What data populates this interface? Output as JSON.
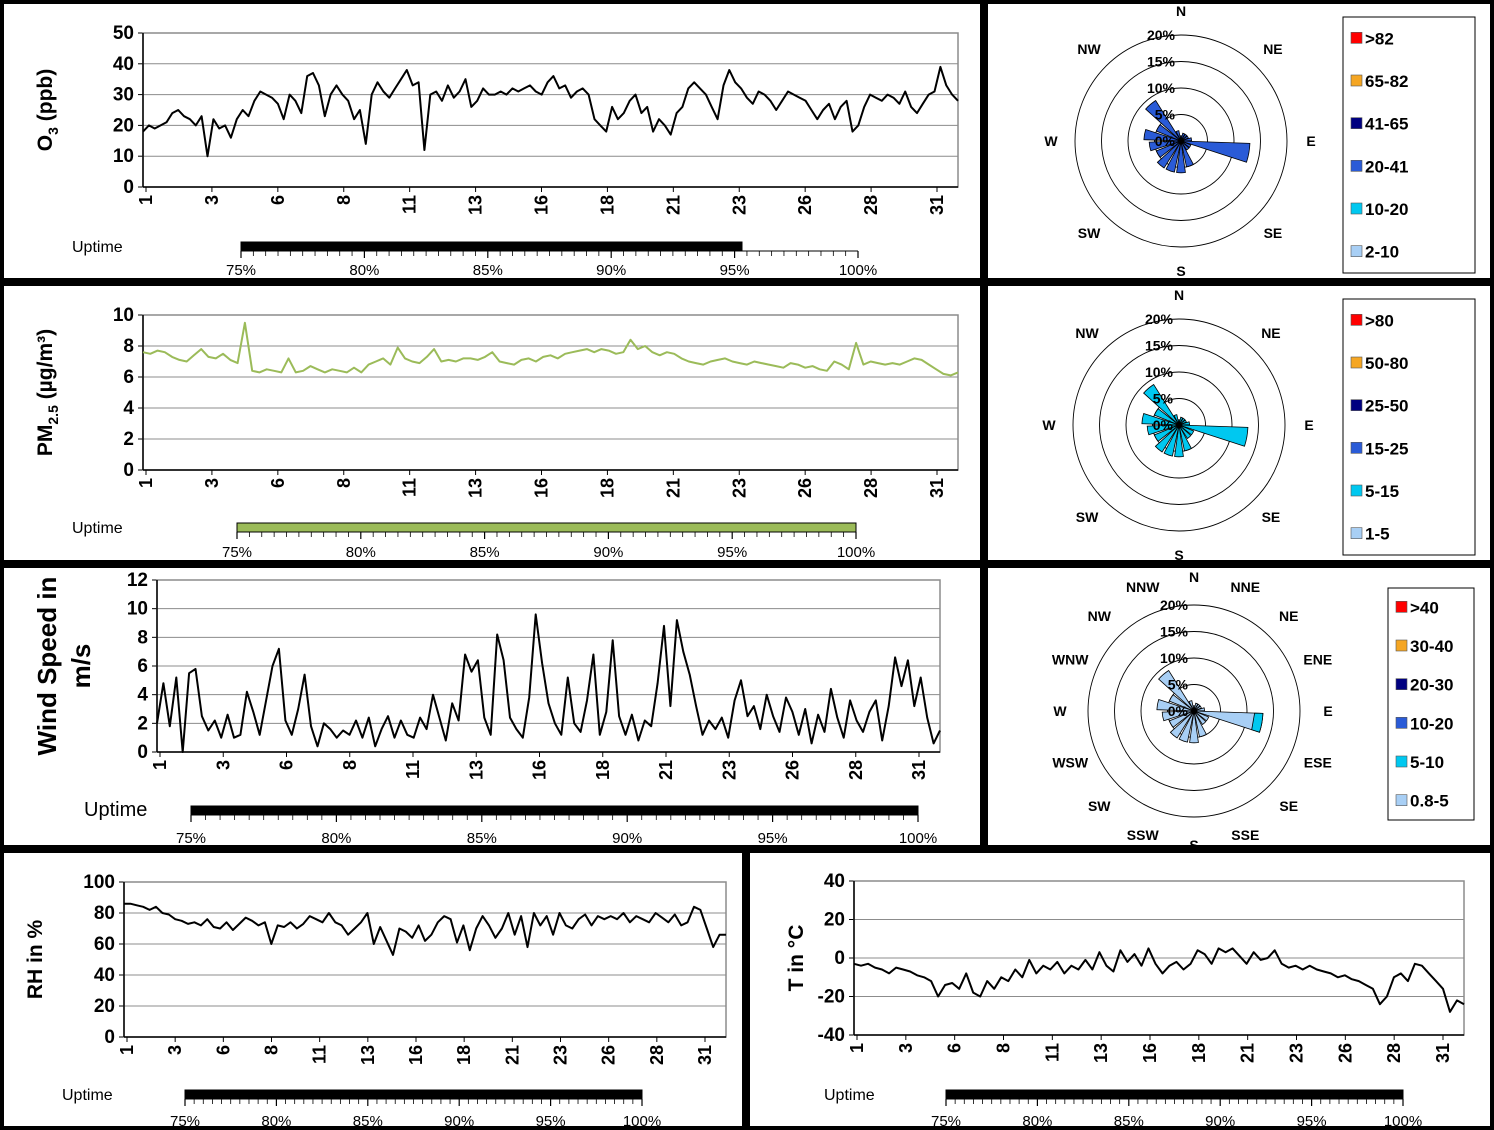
{
  "chart_data": [
    {
      "type": "line",
      "id": "o3",
      "ylabel_main": "O",
      "ylabel_sub": "3",
      "ylabel_rest": " (ppb)",
      "ylim": [
        0,
        50
      ],
      "yticks": [
        0,
        10,
        20,
        30,
        40,
        50
      ],
      "xticks": [
        "1",
        "3",
        "6",
        "8",
        "11",
        "13",
        "16",
        "18",
        "21",
        "23",
        "26",
        "28",
        "31"
      ],
      "grid": true,
      "series": [
        {
          "color": "#000000",
          "values": [
            18,
            20,
            19,
            20,
            21,
            24,
            25,
            23,
            22,
            20,
            23,
            10,
            22,
            19,
            20,
            16,
            22,
            25,
            23,
            28,
            31,
            30,
            29,
            27,
            22,
            30,
            28,
            24,
            36,
            37,
            33,
            23,
            30,
            33,
            30,
            28,
            22,
            25,
            14,
            30,
            34,
            31,
            29,
            32,
            35,
            38,
            33,
            34,
            12,
            30,
            31,
            28,
            33,
            29,
            31,
            35,
            26,
            28,
            32,
            30,
            30,
            31,
            30,
            32,
            31,
            32,
            33,
            31,
            30,
            34,
            36,
            32,
            33,
            29,
            31,
            32,
            30,
            22,
            20,
            18,
            26,
            22,
            24,
            28,
            30,
            24,
            26,
            18,
            22,
            20,
            17,
            24,
            26,
            32,
            34,
            32,
            30,
            26,
            22,
            33,
            38,
            34,
            32,
            29,
            27,
            31,
            30,
            28,
            25,
            28,
            31,
            30,
            29,
            28,
            25,
            22,
            25,
            27,
            22,
            26,
            28,
            18,
            20,
            26,
            30,
            29,
            28,
            30,
            29,
            27,
            31,
            26,
            24,
            27,
            30,
            31,
            39,
            33,
            30,
            28
          ]
        }
      ],
      "uptime": {
        "label": "Uptime",
        "value": 95.3,
        "color": "#000000",
        "ticks": [
          "75%",
          "80%",
          "85%",
          "90%",
          "95%",
          "100%"
        ]
      }
    },
    {
      "type": "line",
      "id": "pm25",
      "ylabel_main": "PM",
      "ylabel_sub": "2.5",
      "ylabel_rest": " (µg/m³)",
      "ylim": [
        0,
        10
      ],
      "yticks": [
        0,
        2,
        4,
        6,
        8,
        10
      ],
      "xticks": [
        "1",
        "3",
        "6",
        "8",
        "11",
        "13",
        "16",
        "18",
        "21",
        "23",
        "26",
        "28",
        "31"
      ],
      "grid": true,
      "series": [
        {
          "color": "#9bbb59",
          "values": [
            7.6,
            7.5,
            7.7,
            7.6,
            7.3,
            7.1,
            7.0,
            7.4,
            7.8,
            7.3,
            7.2,
            7.5,
            7.1,
            6.9,
            9.5,
            6.4,
            6.3,
            6.5,
            6.4,
            6.3,
            7.2,
            6.3,
            6.4,
            6.7,
            6.5,
            6.3,
            6.5,
            6.4,
            6.3,
            6.6,
            6.3,
            6.8,
            7.0,
            7.2,
            6.8,
            7.9,
            7.2,
            7.0,
            6.9,
            7.3,
            7.8,
            7.0,
            7.1,
            7.0,
            7.2,
            7.2,
            7.1,
            7.3,
            7.6,
            7.0,
            6.9,
            6.8,
            7.1,
            7.2,
            7.0,
            7.3,
            7.4,
            7.2,
            7.5,
            7.6,
            7.7,
            7.8,
            7.6,
            7.8,
            7.7,
            7.5,
            7.6,
            8.4,
            7.8,
            8.0,
            7.6,
            7.4,
            7.6,
            7.5,
            7.2,
            7.0,
            6.9,
            6.8,
            7.0,
            7.1,
            7.2,
            7.0,
            6.9,
            6.8,
            7.0,
            6.9,
            6.8,
            6.7,
            6.6,
            6.9,
            6.8,
            6.6,
            6.7,
            6.5,
            6.4,
            7.0,
            6.8,
            6.5,
            8.2,
            6.8,
            7.0,
            6.9,
            6.8,
            6.9,
            6.8,
            7.0,
            7.2,
            7.1,
            6.8,
            6.5,
            6.2,
            6.1,
            6.3
          ]
        }
      ],
      "uptime": {
        "label": "Uptime",
        "value": 100,
        "color": "#9bbb59",
        "ticks": [
          "75%",
          "80%",
          "85%",
          "90%",
          "95%",
          "100%"
        ]
      }
    },
    {
      "type": "line",
      "id": "ws",
      "ylabel_line1": "Wind Speed in",
      "ylabel_line2": "m/s",
      "ylim": [
        0,
        12
      ],
      "yticks": [
        0,
        2,
        4,
        6,
        8,
        10,
        12
      ],
      "xticks": [
        "1",
        "3",
        "6",
        "8",
        "11",
        "13",
        "16",
        "18",
        "21",
        "23",
        "26",
        "28",
        "31"
      ],
      "grid": true,
      "series": [
        {
          "color": "#000000",
          "values": [
            2,
            4.8,
            1.8,
            5.2,
            0,
            5.5,
            5.8,
            2.5,
            1.5,
            2.2,
            1.0,
            2.6,
            1.0,
            1.2,
            4.2,
            2.8,
            1.2,
            3.6,
            6.0,
            7.2,
            2.2,
            1.2,
            3.0,
            5.4,
            1.8,
            0.4,
            2.0,
            1.6,
            1.0,
            1.5,
            1.2,
            2.2,
            1.0,
            2.4,
            0.4,
            1.6,
            2.5,
            1.0,
            2.2,
            1.2,
            1.0,
            2.4,
            1.6,
            4.0,
            2.4,
            0.8,
            3.4,
            2.2,
            6.8,
            5.6,
            6.4,
            2.4,
            1.2,
            8.2,
            6.4,
            2.4,
            1.6,
            1.0,
            3.8,
            9.6,
            6.2,
            3.4,
            2.0,
            1.2,
            5.2,
            2.0,
            1.4,
            3.6,
            6.8,
            1.2,
            2.8,
            7.8,
            2.5,
            1.2,
            2.6,
            0.8,
            2.2,
            1.8,
            4.8,
            8.8,
            3.2,
            9.2,
            7.0,
            5.4,
            3.2,
            1.2,
            2.2,
            1.6,
            2.4,
            1.0,
            3.6,
            5.0,
            2.5,
            3.2,
            1.6,
            4.0,
            2.5,
            1.4,
            3.8,
            2.8,
            1.2,
            3.0,
            0.6,
            2.6,
            1.4,
            4.4,
            2.4,
            1.0,
            3.6,
            2.2,
            1.4,
            2.8,
            3.6,
            0.8,
            3.2,
            6.6,
            4.6,
            6.4,
            3.2,
            5.2,
            2.4,
            0.6,
            1.5
          ]
        }
      ],
      "uptime": {
        "label": "Uptime",
        "value": 100,
        "color": "#000000",
        "ticks": [
          "75%",
          "80%",
          "85%",
          "90%",
          "95%",
          "100%"
        ]
      }
    },
    {
      "type": "line",
      "id": "rh",
      "ylabel": "RH in %",
      "ylim": [
        0,
        100
      ],
      "yticks": [
        0,
        20,
        40,
        60,
        80,
        100
      ],
      "xticks": [
        "1",
        "3",
        "6",
        "8",
        "11",
        "13",
        "16",
        "18",
        "21",
        "23",
        "26",
        "28",
        "31"
      ],
      "grid": true,
      "series": [
        {
          "color": "#000000",
          "values": [
            86,
            86,
            85,
            84,
            82,
            84,
            80,
            79,
            76,
            75,
            73,
            74,
            72,
            76,
            71,
            70,
            74,
            69,
            73,
            77,
            75,
            72,
            74,
            60,
            72,
            71,
            74,
            70,
            73,
            78,
            76,
            74,
            80,
            74,
            72,
            66,
            70,
            74,
            80,
            60,
            71,
            62,
            53,
            70,
            68,
            64,
            72,
            62,
            66,
            74,
            78,
            76,
            61,
            72,
            56,
            70,
            78,
            72,
            64,
            70,
            80,
            66,
            78,
            58,
            80,
            72,
            78,
            66,
            80,
            72,
            70,
            76,
            79,
            72,
            78,
            76,
            78,
            76,
            80,
            74,
            78,
            76,
            74,
            80,
            77,
            74,
            79,
            72,
            74,
            84,
            82,
            70,
            58,
            66,
            66
          ]
        }
      ],
      "uptime": {
        "label": "Uptime",
        "value": 100,
        "color": "#000000",
        "ticks": [
          "75%",
          "80%",
          "85%",
          "90%",
          "95%",
          "100%"
        ]
      }
    },
    {
      "type": "line",
      "id": "t",
      "ylabel": "T in °C",
      "ylim": [
        -40,
        40
      ],
      "yticks": [
        -40,
        -20,
        0,
        20,
        40
      ],
      "xticks": [
        "1",
        "3",
        "6",
        "8",
        "11",
        "13",
        "16",
        "18",
        "21",
        "23",
        "26",
        "28",
        "31"
      ],
      "grid": true,
      "series": [
        {
          "color": "#000000",
          "values": [
            -3,
            -4,
            -3,
            -5,
            -6,
            -8,
            -5,
            -6,
            -7,
            -9,
            -10,
            -12,
            -20,
            -14,
            -13,
            -16,
            -8,
            -18,
            -20,
            -12,
            -16,
            -10,
            -12,
            -6,
            -10,
            -1,
            -8,
            -4,
            -6,
            -2,
            -8,
            -4,
            -6,
            -1,
            -6,
            3,
            -4,
            -7,
            4,
            -2,
            2,
            -4,
            5,
            -3,
            -8,
            -4,
            -2,
            -6,
            -3,
            4,
            2,
            -3,
            5,
            3,
            5,
            1,
            -3,
            3,
            -1,
            0,
            4,
            -3,
            -5,
            -4,
            -6,
            -4,
            -6,
            -7,
            -8,
            -10,
            -9,
            -11,
            -12,
            -14,
            -16,
            -24,
            -20,
            -10,
            -8,
            -12,
            -3,
            -4,
            -8,
            -12,
            -16,
            -28,
            -22,
            -24
          ]
        }
      ],
      "uptime": {
        "label": "Uptime",
        "value": 100,
        "color": "#000000",
        "ticks": [
          "75%",
          "80%",
          "85%",
          "90%",
          "95%",
          "100%"
        ]
      }
    },
    {
      "type": "wind-rose",
      "id": "rose_o3",
      "rings": [
        "0%",
        "5%",
        "10%",
        "15%",
        "20%"
      ],
      "directions": [
        "N",
        "NE",
        "E",
        "SE",
        "S",
        "SW",
        "W",
        "NW"
      ],
      "petals": [
        [
          0,
          1
        ],
        [
          20,
          1.5
        ],
        [
          40,
          1.5
        ],
        [
          60,
          1.5
        ],
        [
          80,
          2
        ],
        [
          100,
          13
        ],
        [
          120,
          2
        ],
        [
          140,
          2
        ],
        [
          160,
          5
        ],
        [
          180,
          6
        ],
        [
          200,
          6
        ],
        [
          220,
          6
        ],
        [
          240,
          5
        ],
        [
          260,
          6
        ],
        [
          280,
          7
        ],
        [
          300,
          5
        ],
        [
          320,
          9
        ],
        [
          340,
          2
        ]
      ],
      "petal_color": "#2a5bd7",
      "legend": [
        {
          "label": ">82",
          "color": "#ff0000"
        },
        {
          "label": "65-82",
          "color": "#f5a623"
        },
        {
          "label": "41-65",
          "color": "#000080"
        },
        {
          "label": "20-41",
          "color": "#2a5bd7"
        },
        {
          "label": "10-20",
          "color": "#00c8f0"
        },
        {
          "label": "2-10",
          "color": "#a8cff5"
        }
      ]
    },
    {
      "type": "wind-rose",
      "id": "rose_pm",
      "rings": [
        "0%",
        "5%",
        "10%",
        "15%",
        "20%"
      ],
      "directions": [
        "N",
        "NE",
        "E",
        "SE",
        "S",
        "SW",
        "W",
        "NW"
      ],
      "petals": [
        [
          0,
          1
        ],
        [
          20,
          1.5
        ],
        [
          40,
          1.5
        ],
        [
          60,
          1.5
        ],
        [
          80,
          2
        ],
        [
          100,
          13
        ],
        [
          120,
          3
        ],
        [
          140,
          3
        ],
        [
          160,
          5
        ],
        [
          180,
          6
        ],
        [
          200,
          6
        ],
        [
          220,
          6
        ],
        [
          240,
          5
        ],
        [
          260,
          6
        ],
        [
          280,
          7
        ],
        [
          300,
          5
        ],
        [
          320,
          9
        ],
        [
          340,
          2
        ]
      ],
      "petal_color": "#00c8f0",
      "legend": [
        {
          "label": ">80",
          "color": "#ff0000"
        },
        {
          "label": "50-80",
          "color": "#f5a623"
        },
        {
          "label": "25-50",
          "color": "#000080"
        },
        {
          "label": "15-25",
          "color": "#2a5bd7"
        },
        {
          "label": "5-15",
          "color": "#00c8f0"
        },
        {
          "label": "1-5",
          "color": "#a8cff5"
        }
      ]
    },
    {
      "type": "wind-rose",
      "id": "rose_ws",
      "rings": [
        "0%",
        "5%",
        "10%",
        "15%",
        "20%"
      ],
      "directions": [
        "N",
        "NNE",
        "NE",
        "ENE",
        "E",
        "ESE",
        "SE",
        "SSE",
        "S",
        "SSW",
        "SW",
        "WSW",
        "W",
        "WNW",
        "NW",
        "NNW"
      ],
      "petals": [
        [
          0,
          1
        ],
        [
          20,
          1.5
        ],
        [
          40,
          1.5
        ],
        [
          60,
          1.5
        ],
        [
          80,
          2
        ],
        [
          100,
          13
        ],
        [
          120,
          3
        ],
        [
          140,
          3
        ],
        [
          160,
          5
        ],
        [
          180,
          6
        ],
        [
          200,
          6
        ],
        [
          220,
          6
        ],
        [
          240,
          5
        ],
        [
          260,
          6
        ],
        [
          280,
          7
        ],
        [
          300,
          5
        ],
        [
          320,
          9
        ],
        [
          340,
          2
        ]
      ],
      "petal_color": "#a8cff5",
      "petal_tip_color": "#00c8f0",
      "legend": [
        {
          "label": ">40",
          "color": "#ff0000"
        },
        {
          "label": "30-40",
          "color": "#f5a623"
        },
        {
          "label": "20-30",
          "color": "#000080"
        },
        {
          "label": "10-20",
          "color": "#2a5bd7"
        },
        {
          "label": "5-10",
          "color": "#00c8f0"
        },
        {
          "label": "0.8-5",
          "color": "#a8cff5"
        }
      ]
    }
  ]
}
